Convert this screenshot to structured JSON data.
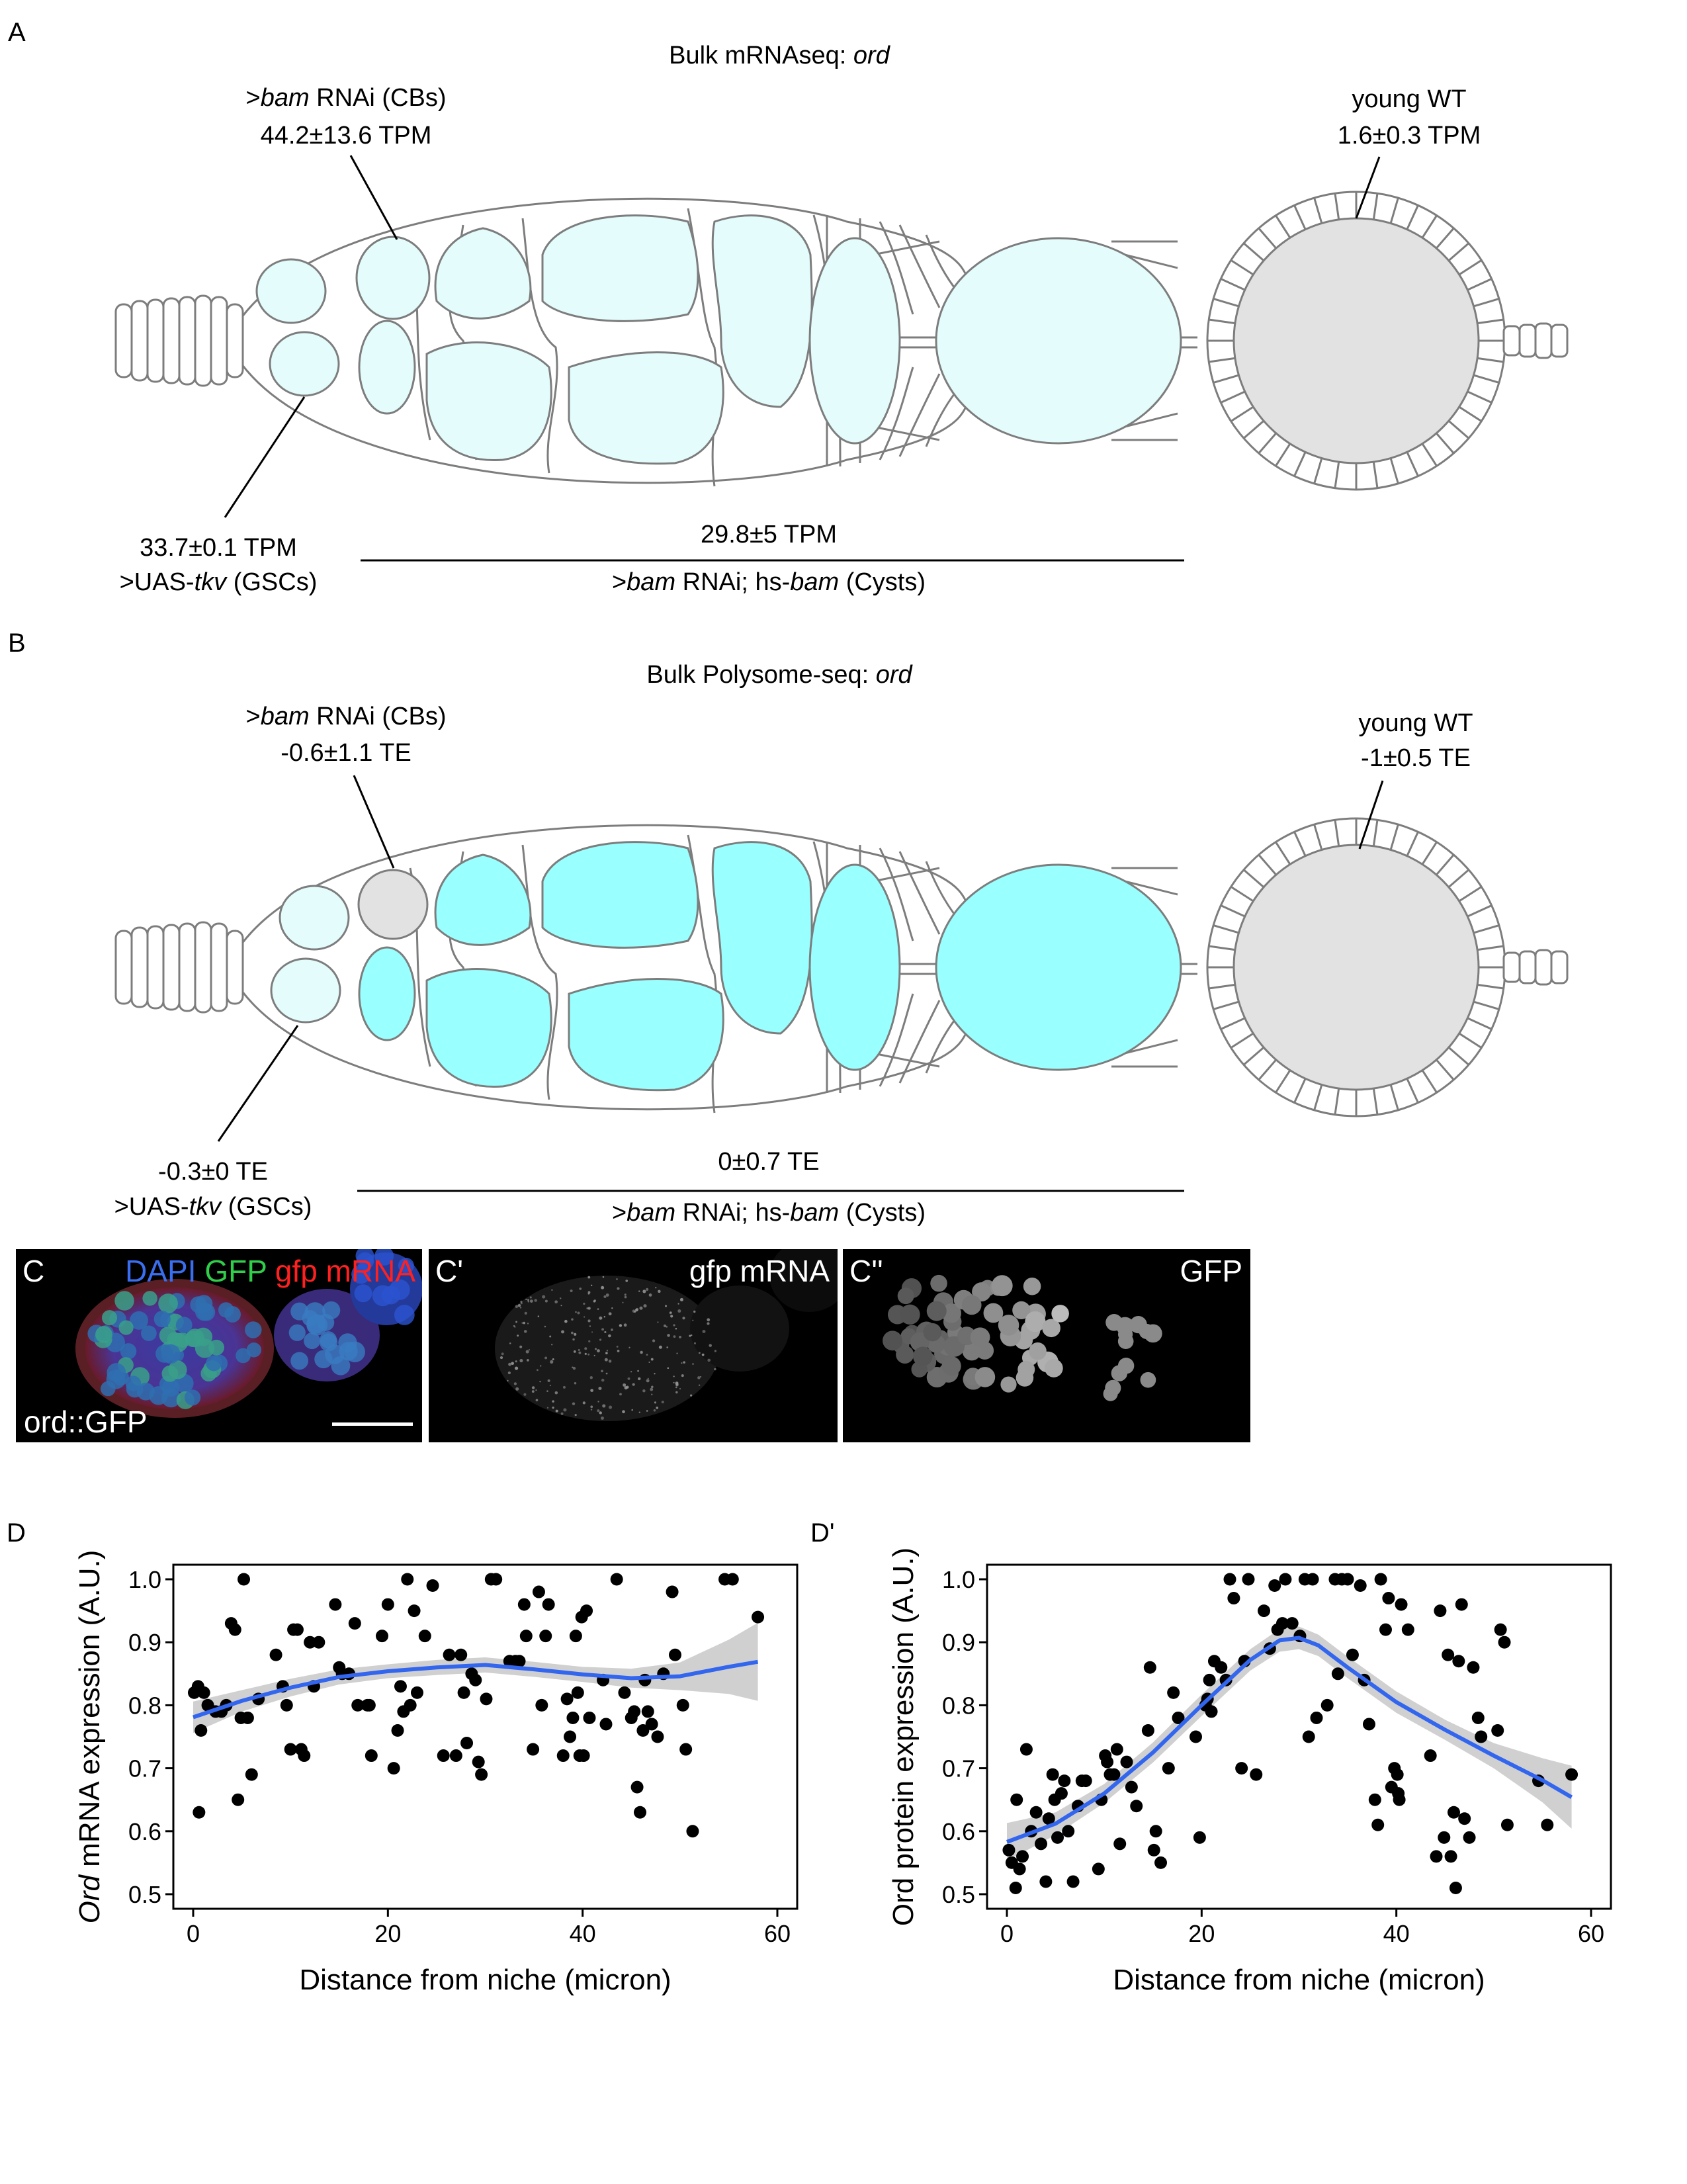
{
  "panel_a": {
    "letter": "A",
    "title_prefix": "Bulk mRNAseq: ",
    "title_gene": "ord",
    "cb_label_geno": "bam",
    "cb_label_rest": " RNAi (CBs)",
    "cb_value": "44.2±13.6 TPM",
    "wt_label": "young WT",
    "wt_value": "1.6±0.3 TPM",
    "gsc_value": "33.7±0.1 TPM",
    "gsc_label_prefix": ">UAS-",
    "gsc_label_geno": "tkv",
    "gsc_label_suffix": " (GSCs)",
    "cyst_value": "29.8±5 TPM",
    "cyst_label_geno1": "bam",
    "cyst_label_mid": " RNAi; hs-",
    "cyst_label_geno2": "bam",
    "cyst_label_suffix": " (Cysts)"
  },
  "panel_b": {
    "letter": "B",
    "title_prefix": "Bulk Polysome-seq: ",
    "title_gene": "ord",
    "cb_label_geno": "bam",
    "cb_label_rest": " RNAi (CBs)",
    "cb_value": "-0.6±1.1 TE",
    "wt_label": "young WT",
    "wt_value": "-1±0.5 TE",
    "gsc_value": "-0.3±0 TE",
    "gsc_label_prefix": ">UAS-",
    "gsc_label_geno": "tkv",
    "gsc_label_suffix": " (GSCs)",
    "cyst_value": "0±0.7 TE",
    "cyst_label_geno1": "bam",
    "cyst_label_mid": " RNAi; hs-",
    "cyst_label_geno2": "bam",
    "cyst_label_suffix": " (Cysts)"
  },
  "panel_c": {
    "c_letter": "C",
    "dapi": "DAPI",
    "gfp": "GFP",
    "gfp_mrna": "gfp mRNA",
    "construct": "ord::GFP",
    "c1_letter": "C'",
    "c1_label": "gfp mRNA",
    "c2_letter": "C''",
    "c2_label": "GFP",
    "colors": {
      "dapi": "#3a6ef0",
      "gfp": "#2fcf4a",
      "mrna": "#ff2020"
    }
  },
  "colors": {
    "light_cyan": "#e4fcfc",
    "bright_cyan": "#99ffff",
    "grey_fill": "#e2e2e2",
    "outline": "#7d7d7d",
    "fit_line": "#3366ee",
    "ci_band": "#d0d0d0"
  },
  "chart_data": [
    {
      "type": "scatter",
      "panel": "D",
      "title": "",
      "xlabel": "Distance from niche (micron)",
      "ylabel_italic": "Ord",
      "ylabel_rest": " mRNA expression (A.U.)",
      "xlim": [
        0,
        60
      ],
      "ylim": [
        0.5,
        1.0
      ],
      "xticks": [
        0,
        20,
        40,
        60
      ],
      "yticks": [
        "0.5",
        "0.6",
        "0.7",
        "0.8",
        "0.9",
        "1.0"
      ],
      "grid": false,
      "points": [
        [
          0.1,
          0.82
        ],
        [
          0.5,
          0.83
        ],
        [
          0.6,
          0.63
        ],
        [
          0.8,
          0.76
        ],
        [
          1.1,
          0.82
        ],
        [
          1.5,
          0.8
        ],
        [
          2.3,
          0.79
        ],
        [
          2.9,
          0.79
        ],
        [
          3.4,
          0.8
        ],
        [
          3.9,
          0.93
        ],
        [
          4.3,
          0.92
        ],
        [
          4.6,
          0.65
        ],
        [
          4.9,
          0.78
        ],
        [
          5.2,
          1.0
        ],
        [
          5.6,
          0.78
        ],
        [
          6.0,
          0.69
        ],
        [
          6.7,
          0.81
        ],
        [
          8.5,
          0.88
        ],
        [
          9.2,
          0.83
        ],
        [
          9.6,
          0.8
        ],
        [
          10.0,
          0.73
        ],
        [
          10.3,
          0.92
        ],
        [
          10.7,
          0.92
        ],
        [
          11.1,
          0.73
        ],
        [
          11.4,
          0.72
        ],
        [
          12.0,
          0.9
        ],
        [
          12.4,
          0.83
        ],
        [
          12.9,
          0.9
        ],
        [
          14.6,
          0.96
        ],
        [
          15.0,
          0.86
        ],
        [
          15.3,
          0.85
        ],
        [
          16.0,
          0.85
        ],
        [
          16.6,
          0.93
        ],
        [
          16.9,
          0.8
        ],
        [
          17.9,
          0.8
        ],
        [
          18.1,
          0.8
        ],
        [
          18.3,
          0.72
        ],
        [
          19.4,
          0.91
        ],
        [
          20.0,
          0.96
        ],
        [
          20.6,
          0.7
        ],
        [
          21.0,
          0.76
        ],
        [
          21.3,
          0.83
        ],
        [
          21.6,
          0.79
        ],
        [
          22.0,
          1.0
        ],
        [
          22.3,
          0.8
        ],
        [
          22.7,
          0.95
        ],
        [
          23.0,
          0.82
        ],
        [
          23.8,
          0.91
        ],
        [
          24.6,
          0.99
        ],
        [
          25.7,
          0.72
        ],
        [
          26.3,
          0.88
        ],
        [
          27.0,
          0.72
        ],
        [
          27.5,
          0.88
        ],
        [
          27.8,
          0.82
        ],
        [
          28.1,
          0.74
        ],
        [
          28.6,
          0.85
        ],
        [
          29.0,
          0.84
        ],
        [
          29.3,
          0.71
        ],
        [
          29.6,
          0.69
        ],
        [
          30.1,
          0.81
        ],
        [
          30.6,
          1.0
        ],
        [
          31.1,
          1.0
        ],
        [
          32.5,
          0.87
        ],
        [
          33.1,
          0.87
        ],
        [
          33.5,
          0.87
        ],
        [
          34.0,
          0.96
        ],
        [
          34.2,
          0.91
        ],
        [
          34.9,
          0.73
        ],
        [
          35.5,
          0.98
        ],
        [
          35.8,
          0.8
        ],
        [
          36.2,
          0.91
        ],
        [
          36.5,
          0.96
        ],
        [
          38.0,
          0.72
        ],
        [
          38.4,
          0.81
        ],
        [
          38.7,
          0.75
        ],
        [
          39.0,
          0.78
        ],
        [
          39.3,
          0.91
        ],
        [
          39.5,
          0.82
        ],
        [
          39.7,
          0.72
        ],
        [
          39.9,
          0.94
        ],
        [
          40.1,
          0.72
        ],
        [
          40.4,
          0.95
        ],
        [
          40.7,
          0.78
        ],
        [
          42.1,
          0.84
        ],
        [
          42.4,
          0.77
        ],
        [
          43.5,
          1.0
        ],
        [
          44.3,
          0.82
        ],
        [
          45.0,
          0.78
        ],
        [
          45.3,
          0.79
        ],
        [
          45.6,
          0.67
        ],
        [
          45.9,
          0.63
        ],
        [
          46.2,
          0.76
        ],
        [
          46.4,
          0.84
        ],
        [
          46.7,
          0.79
        ],
        [
          47.1,
          0.77
        ],
        [
          47.7,
          0.75
        ],
        [
          48.3,
          0.85
        ],
        [
          49.2,
          0.98
        ],
        [
          49.5,
          0.88
        ],
        [
          50.3,
          0.8
        ],
        [
          50.6,
          0.73
        ],
        [
          51.3,
          0.6
        ],
        [
          54.6,
          1.0
        ],
        [
          55.4,
          1.0
        ],
        [
          58.0,
          0.94
        ]
      ],
      "fit": {
        "x": [
          0,
          5,
          10,
          15,
          20,
          25,
          30,
          35,
          40,
          45,
          50,
          55,
          58
        ],
        "y": [
          0.781,
          0.807,
          0.828,
          0.845,
          0.854,
          0.86,
          0.864,
          0.857,
          0.849,
          0.843,
          0.846,
          0.861,
          0.869
        ]
      },
      "ci_halfwidth": [
        0.025,
        0.017,
        0.014,
        0.012,
        0.011,
        0.012,
        0.012,
        0.012,
        0.012,
        0.015,
        0.022,
        0.043,
        0.062
      ]
    },
    {
      "type": "scatter",
      "panel": "D'",
      "title": "",
      "xlabel": "Distance from niche (micron)",
      "ylabel_italic": "",
      "ylabel_rest": "Ord protein expression (A.U.)",
      "xlim": [
        0,
        60
      ],
      "ylim": [
        0.5,
        1.0
      ],
      "xticks": [
        0,
        20,
        40,
        60
      ],
      "yticks": [
        "0.5",
        "0.6",
        "0.7",
        "0.8",
        "0.9",
        "1.0"
      ],
      "grid": false,
      "points": [
        [
          0.2,
          0.57
        ],
        [
          0.5,
          0.55
        ],
        [
          0.9,
          0.51
        ],
        [
          1.0,
          0.65
        ],
        [
          1.3,
          0.54
        ],
        [
          1.6,
          0.56
        ],
        [
          2.0,
          0.73
        ],
        [
          2.5,
          0.6
        ],
        [
          3.0,
          0.63
        ],
        [
          3.5,
          0.58
        ],
        [
          4.0,
          0.52
        ],
        [
          4.3,
          0.62
        ],
        [
          4.7,
          0.69
        ],
        [
          4.9,
          0.65
        ],
        [
          5.2,
          0.59
        ],
        [
          5.6,
          0.66
        ],
        [
          5.9,
          0.68
        ],
        [
          6.3,
          0.6
        ],
        [
          6.8,
          0.52
        ],
        [
          7.3,
          0.64
        ],
        [
          7.7,
          0.68
        ],
        [
          8.1,
          0.68
        ],
        [
          9.4,
          0.54
        ],
        [
          9.7,
          0.65
        ],
        [
          10.1,
          0.72
        ],
        [
          10.3,
          0.71
        ],
        [
          10.6,
          0.69
        ],
        [
          11.0,
          0.69
        ],
        [
          11.3,
          0.73
        ],
        [
          11.6,
          0.58
        ],
        [
          12.3,
          0.71
        ],
        [
          12.8,
          0.67
        ],
        [
          13.3,
          0.64
        ],
        [
          14.5,
          0.76
        ],
        [
          14.7,
          0.86
        ],
        [
          15.1,
          0.57
        ],
        [
          15.3,
          0.6
        ],
        [
          15.8,
          0.55
        ],
        [
          16.6,
          0.7
        ],
        [
          17.1,
          0.82
        ],
        [
          17.6,
          0.78
        ],
        [
          19.4,
          0.75
        ],
        [
          19.8,
          0.59
        ],
        [
          20.4,
          0.8
        ],
        [
          20.6,
          0.81
        ],
        [
          20.8,
          0.84
        ],
        [
          21.0,
          0.79
        ],
        [
          21.3,
          0.87
        ],
        [
          22.0,
          0.86
        ],
        [
          22.5,
          0.84
        ],
        [
          22.9,
          1.0
        ],
        [
          23.3,
          0.97
        ],
        [
          24.1,
          0.7
        ],
        [
          24.4,
          0.87
        ],
        [
          24.8,
          1.0
        ],
        [
          25.6,
          0.69
        ],
        [
          26.4,
          0.95
        ],
        [
          27.0,
          0.89
        ],
        [
          27.5,
          0.99
        ],
        [
          27.8,
          0.92
        ],
        [
          28.3,
          0.93
        ],
        [
          28.6,
          1.0
        ],
        [
          29.3,
          0.93
        ],
        [
          30.1,
          0.91
        ],
        [
          30.6,
          1.0
        ],
        [
          31.0,
          0.75
        ],
        [
          31.4,
          1.0
        ],
        [
          31.8,
          0.78
        ],
        [
          32.9,
          0.8
        ],
        [
          33.7,
          1.0
        ],
        [
          34.0,
          0.85
        ],
        [
          34.4,
          1.0
        ],
        [
          35.0,
          1.0
        ],
        [
          35.5,
          0.88
        ],
        [
          36.3,
          0.99
        ],
        [
          36.7,
          0.84
        ],
        [
          37.2,
          0.77
        ],
        [
          37.8,
          0.65
        ],
        [
          38.1,
          0.61
        ],
        [
          38.4,
          1.0
        ],
        [
          38.9,
          0.92
        ],
        [
          39.2,
          0.97
        ],
        [
          39.5,
          0.67
        ],
        [
          39.8,
          0.7
        ],
        [
          40.1,
          0.69
        ],
        [
          40.2,
          0.66
        ],
        [
          40.3,
          0.65
        ],
        [
          40.5,
          0.96
        ],
        [
          41.2,
          0.92
        ],
        [
          43.5,
          0.72
        ],
        [
          44.1,
          0.56
        ],
        [
          44.5,
          0.95
        ],
        [
          44.9,
          0.59
        ],
        [
          45.3,
          0.88
        ],
        [
          45.6,
          0.56
        ],
        [
          45.9,
          0.63
        ],
        [
          46.1,
          0.51
        ],
        [
          46.4,
          0.87
        ],
        [
          46.7,
          0.96
        ],
        [
          47.0,
          0.62
        ],
        [
          47.5,
          0.59
        ],
        [
          47.9,
          0.86
        ],
        [
          48.4,
          0.78
        ],
        [
          48.7,
          0.75
        ],
        [
          50.4,
          0.76
        ],
        [
          50.7,
          0.92
        ],
        [
          51.1,
          0.9
        ],
        [
          51.4,
          0.61
        ],
        [
          54.6,
          0.68
        ],
        [
          55.5,
          0.61
        ],
        [
          58.0,
          0.69
        ]
      ],
      "fit": {
        "x": [
          0,
          5,
          10,
          15,
          20,
          25,
          28,
          30,
          32,
          35,
          40,
          45,
          50,
          55,
          58
        ],
        "y": [
          0.583,
          0.612,
          0.66,
          0.725,
          0.8,
          0.872,
          0.903,
          0.907,
          0.895,
          0.86,
          0.805,
          0.761,
          0.72,
          0.681,
          0.654
        ]
      },
      "ci_halfwidth": [
        0.03,
        0.018,
        0.015,
        0.016,
        0.017,
        0.017,
        0.018,
        0.018,
        0.017,
        0.017,
        0.017,
        0.016,
        0.02,
        0.035,
        0.05
      ]
    }
  ]
}
